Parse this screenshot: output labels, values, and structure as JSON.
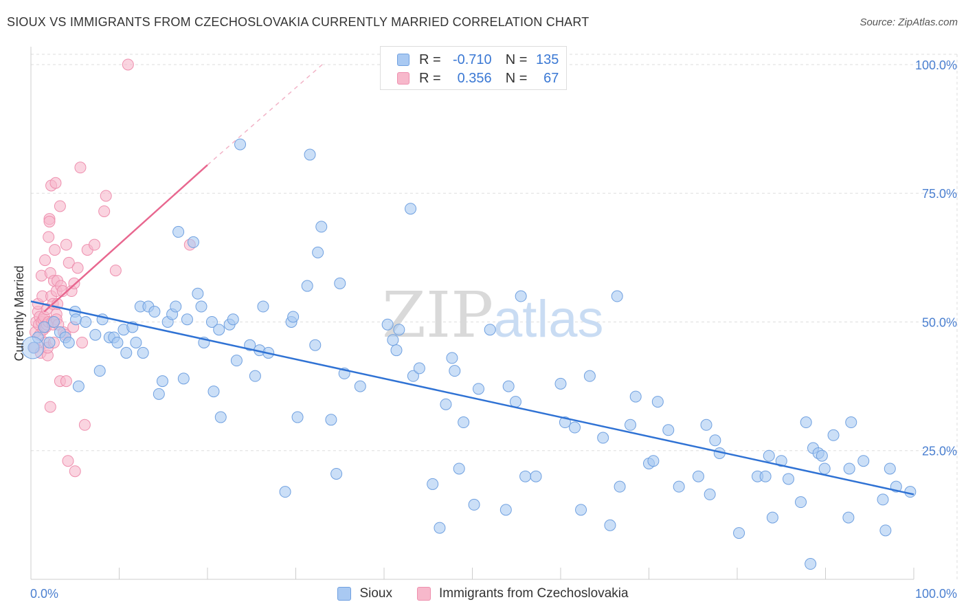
{
  "title": "SIOUX VS IMMIGRANTS FROM CZECHOSLOVAKIA CURRENTLY MARRIED CORRELATION CHART",
  "source": "Source: ZipAtlas.com",
  "watermark": {
    "zip": "ZIP",
    "atlas": "atlas"
  },
  "colors": {
    "sioux_fill": "#a9c9f2",
    "sioux_stroke": "#6fa0e0",
    "sioux_line": "#2f72d4",
    "czech_fill": "#f7b8cb",
    "czech_stroke": "#ee8fae",
    "czech_line": "#e8678f",
    "tick_text": "#4a7fd0",
    "grid": "#dddddd"
  },
  "legend_top": [
    {
      "r_label": "R =",
      "r_value": "-0.710",
      "n_label": "N =",
      "n_value": "135"
    },
    {
      "r_label": "R =",
      "r_value": "0.356",
      "n_label": "N =",
      "n_value": "67"
    }
  ],
  "legend_bottom": [
    "Sioux",
    "Immigrants from Czechoslovakia"
  ],
  "chart_data": {
    "type": "scatter",
    "title": "SIOUX VS IMMIGRANTS FROM CZECHOSLOVAKIA CURRENTLY MARRIED CORRELATION CHART",
    "xlabel": "",
    "ylabel": "Currently Married",
    "xlim": [
      0,
      100
    ],
    "ylim": [
      0,
      102
    ],
    "x_tick_labels": [
      "0.0%",
      "100.0%"
    ],
    "y_ticks": [
      25,
      50,
      75,
      100
    ],
    "y_tick_labels": [
      "25.0%",
      "50.0%",
      "75.0%",
      "100.0%"
    ],
    "grid": true,
    "series": [
      {
        "name": "Sioux",
        "R": -0.71,
        "N": 135,
        "trend": {
          "x0": 0,
          "y0": 54,
          "x1": 100,
          "y1": 16.5
        },
        "points": [
          [
            0.3,
            45
          ],
          [
            0.8,
            47
          ],
          [
            1.5,
            49
          ],
          [
            2.1,
            46
          ],
          [
            2.6,
            50
          ],
          [
            3.3,
            48
          ],
          [
            3.9,
            47
          ],
          [
            4.3,
            46
          ],
          [
            5.0,
            52
          ],
          [
            5.1,
            50.5
          ],
          [
            5.4,
            37.5
          ],
          [
            6.2,
            50
          ],
          [
            7.3,
            47.5
          ],
          [
            7.8,
            40.5
          ],
          [
            8.1,
            50.5
          ],
          [
            8.9,
            47
          ],
          [
            9.4,
            47
          ],
          [
            9.8,
            46
          ],
          [
            10.5,
            48.5
          ],
          [
            10.8,
            44
          ],
          [
            11.5,
            49
          ],
          [
            11.9,
            46
          ],
          [
            12.7,
            44
          ],
          [
            12.4,
            53
          ],
          [
            13.3,
            53
          ],
          [
            14.0,
            52
          ],
          [
            14.5,
            36
          ],
          [
            14.9,
            38.5
          ],
          [
            15.5,
            50
          ],
          [
            16.0,
            51.5
          ],
          [
            16.4,
            53
          ],
          [
            16.7,
            67.5
          ],
          [
            17.3,
            39
          ],
          [
            17.7,
            50.5
          ],
          [
            18.4,
            65.5
          ],
          [
            18.9,
            55.5
          ],
          [
            19.3,
            53
          ],
          [
            19.6,
            46
          ],
          [
            20.5,
            50
          ],
          [
            20.7,
            36.5
          ],
          [
            21.3,
            48.5
          ],
          [
            21.5,
            31.5
          ],
          [
            22.5,
            49.5
          ],
          [
            22.9,
            50.5
          ],
          [
            23.3,
            42.5
          ],
          [
            23.7,
            84.5
          ],
          [
            24.8,
            45.5
          ],
          [
            25.4,
            39.5
          ],
          [
            25.9,
            44.5
          ],
          [
            26.3,
            53
          ],
          [
            26.9,
            44
          ],
          [
            28.8,
            17
          ],
          [
            29.5,
            50
          ],
          [
            29.7,
            51
          ],
          [
            30.2,
            31.5
          ],
          [
            31.3,
            57
          ],
          [
            31.6,
            82.5
          ],
          [
            32.2,
            45.5
          ],
          [
            32.5,
            63.5
          ],
          [
            32.9,
            68.5
          ],
          [
            34.0,
            31
          ],
          [
            34.6,
            20.5
          ],
          [
            35.0,
            57.5
          ],
          [
            35.5,
            40
          ],
          [
            37.3,
            37.5
          ],
          [
            40.4,
            49.5
          ],
          [
            41.0,
            46.5
          ],
          [
            41.4,
            44.5
          ],
          [
            41.7,
            48.5
          ],
          [
            43.0,
            72
          ],
          [
            43.3,
            39.5
          ],
          [
            44.0,
            41
          ],
          [
            45.5,
            18.5
          ],
          [
            46.3,
            10
          ],
          [
            47.0,
            34
          ],
          [
            47.7,
            43
          ],
          [
            48.0,
            40.5
          ],
          [
            48.5,
            21.5
          ],
          [
            49.0,
            30.5
          ],
          [
            50.2,
            14.5
          ],
          [
            50.7,
            37
          ],
          [
            52.0,
            48.5
          ],
          [
            53.8,
            13.5
          ],
          [
            54.1,
            37.5
          ],
          [
            54.9,
            34.5
          ],
          [
            55.5,
            55
          ],
          [
            56.0,
            20
          ],
          [
            57.2,
            20
          ],
          [
            60.0,
            38
          ],
          [
            60.5,
            30.5
          ],
          [
            61.6,
            29.5
          ],
          [
            62.3,
            13.5
          ],
          [
            63.3,
            39.5
          ],
          [
            64.8,
            27.5
          ],
          [
            65.6,
            10.5
          ],
          [
            66.4,
            55
          ],
          [
            66.7,
            18
          ],
          [
            67.9,
            30
          ],
          [
            68.5,
            35.5
          ],
          [
            70.0,
            22.5
          ],
          [
            70.5,
            23
          ],
          [
            71.0,
            34.5
          ],
          [
            72.2,
            29
          ],
          [
            73.4,
            18
          ],
          [
            75.6,
            20
          ],
          [
            76.5,
            30
          ],
          [
            76.9,
            16.5
          ],
          [
            77.5,
            27
          ],
          [
            78.0,
            24.5
          ],
          [
            80.2,
            9
          ],
          [
            82.3,
            20
          ],
          [
            83.2,
            20
          ],
          [
            83.6,
            24
          ],
          [
            84.0,
            12
          ],
          [
            85.0,
            23
          ],
          [
            85.8,
            19.5
          ],
          [
            87.2,
            15
          ],
          [
            87.8,
            30.5
          ],
          [
            88.3,
            3
          ],
          [
            88.6,
            25.5
          ],
          [
            89.2,
            24.5
          ],
          [
            89.6,
            24
          ],
          [
            89.9,
            21.5
          ],
          [
            90.9,
            28
          ],
          [
            92.6,
            12
          ],
          [
            92.7,
            21.5
          ],
          [
            92.9,
            30.5
          ],
          [
            94.3,
            23
          ],
          [
            96.5,
            15.5
          ],
          [
            96.8,
            9.5
          ],
          [
            97.3,
            21.5
          ],
          [
            98.0,
            18
          ],
          [
            99.6,
            17
          ]
        ]
      },
      {
        "name": "Immigrants from Czechoslovakia",
        "R": 0.356,
        "N": 67,
        "trend": {
          "x0": 1.5,
          "y0": 52,
          "x1": 20,
          "y1": 80.5
        },
        "trend_dashed": {
          "x0": 20,
          "y0": 80.5,
          "x1": 33,
          "y1": 100
        },
        "points": [
          [
            0.4,
            45
          ],
          [
            0.5,
            48
          ],
          [
            0.6,
            50
          ],
          [
            0.8,
            52
          ],
          [
            0.8,
            53.5
          ],
          [
            0.9,
            49.5
          ],
          [
            1.0,
            51
          ],
          [
            1.0,
            47.5
          ],
          [
            1.1,
            44
          ],
          [
            1.2,
            50
          ],
          [
            1.2,
            59
          ],
          [
            1.3,
            55
          ],
          [
            1.4,
            48.5
          ],
          [
            1.4,
            50.5
          ],
          [
            1.5,
            51
          ],
          [
            1.6,
            46
          ],
          [
            1.6,
            62
          ],
          [
            1.7,
            49
          ],
          [
            1.8,
            49.5
          ],
          [
            1.8,
            52.5
          ],
          [
            1.9,
            43.5
          ],
          [
            1.9,
            45
          ],
          [
            2.0,
            66.5
          ],
          [
            2.0,
            50
          ],
          [
            2.1,
            70
          ],
          [
            2.1,
            69.5
          ],
          [
            2.2,
            33.5
          ],
          [
            2.2,
            59.5
          ],
          [
            2.3,
            76.5
          ],
          [
            2.3,
            55
          ],
          [
            2.4,
            50
          ],
          [
            2.5,
            53.5
          ],
          [
            2.5,
            49.5
          ],
          [
            2.6,
            58
          ],
          [
            2.6,
            46
          ],
          [
            2.7,
            64
          ],
          [
            2.8,
            77
          ],
          [
            2.9,
            56
          ],
          [
            2.9,
            51.5
          ],
          [
            2.9,
            50.5
          ],
          [
            3.0,
            53.5
          ],
          [
            3.0,
            58
          ],
          [
            3.1,
            49.5
          ],
          [
            3.3,
            38.5
          ],
          [
            3.3,
            72.5
          ],
          [
            3.4,
            57
          ],
          [
            3.6,
            56
          ],
          [
            3.7,
            48
          ],
          [
            3.9,
            47.5
          ],
          [
            4.0,
            65
          ],
          [
            4.0,
            38.5
          ],
          [
            4.2,
            23
          ],
          [
            4.3,
            61.5
          ],
          [
            4.6,
            56
          ],
          [
            4.8,
            49
          ],
          [
            4.9,
            57.5
          ],
          [
            5.0,
            21
          ],
          [
            5.3,
            60.5
          ],
          [
            5.6,
            80
          ],
          [
            5.8,
            46
          ],
          [
            6.1,
            30
          ],
          [
            6.4,
            64
          ],
          [
            7.2,
            65
          ],
          [
            8.3,
            71.5
          ],
          [
            8.5,
            74.5
          ],
          [
            9.6,
            60
          ],
          [
            11.0,
            100
          ],
          [
            18.0,
            65
          ]
        ]
      }
    ]
  }
}
